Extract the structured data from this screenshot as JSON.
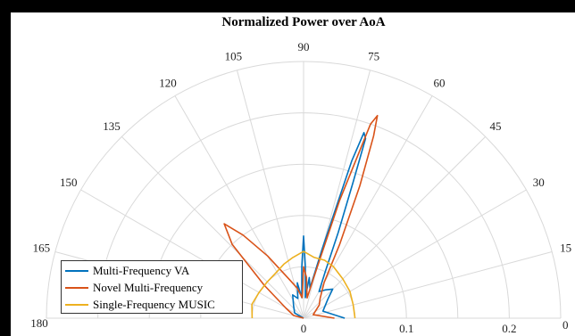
{
  "chart_data": {
    "type": "line",
    "coordinate_system": "polar",
    "title": "Normalized Power over AoA",
    "angle_range_deg": [
      0,
      180
    ],
    "angle_tick_labels": [
      "0",
      "15",
      "30",
      "45",
      "60",
      "75",
      "90",
      "105",
      "120",
      "135",
      "150",
      "165",
      "180"
    ],
    "angle_tick_values": [
      0,
      15,
      30,
      45,
      60,
      75,
      90,
      105,
      120,
      135,
      150,
      165,
      180
    ],
    "radial_range": [
      0,
      0.25
    ],
    "radial_tick_labels": [
      "0",
      "0.1",
      "0.2"
    ],
    "radial_tick_values": [
      0,
      0.1,
      0.2
    ],
    "grid": true,
    "legend_position": "bottom-left",
    "series": [
      {
        "name": "Multi-Frequency VA",
        "color": "#0072BD",
        "points": [
          [
            0,
            0.04
          ],
          [
            20,
            0.02
          ],
          [
            38,
            0.03
          ],
          [
            45,
            0.04
          ],
          [
            52,
            0.035
          ],
          [
            60,
            0.03
          ],
          [
            65,
            0.05
          ],
          [
            68,
            0.09
          ],
          [
            70,
            0.14
          ],
          [
            71,
            0.185
          ],
          [
            72,
            0.19
          ],
          [
            73,
            0.16
          ],
          [
            75,
            0.07
          ],
          [
            78,
            0.03
          ],
          [
            82,
            0.04
          ],
          [
            85,
            0.02
          ],
          [
            88,
            0.05
          ],
          [
            90,
            0.08
          ],
          [
            92,
            0.05
          ],
          [
            95,
            0.02
          ],
          [
            100,
            0.035
          ],
          [
            106,
            0.02
          ],
          [
            115,
            0.025
          ],
          [
            130,
            0.015
          ],
          [
            150,
            0.01
          ],
          [
            180,
            0.0
          ]
        ]
      },
      {
        "name": "Novel Multi-Frequency",
        "color": "#D95319",
        "points": [
          [
            0,
            0.03
          ],
          [
            20,
            0.01
          ],
          [
            40,
            0.02
          ],
          [
            50,
            0.025
          ],
          [
            60,
            0.04
          ],
          [
            64,
            0.08
          ],
          [
            67,
            0.14
          ],
          [
            69,
            0.19
          ],
          [
            70,
            0.21
          ],
          [
            71,
            0.2
          ],
          [
            73,
            0.12
          ],
          [
            76,
            0.04
          ],
          [
            80,
            0.02
          ],
          [
            86,
            0.04
          ],
          [
            90,
            0.05
          ],
          [
            94,
            0.02
          ],
          [
            102,
            0.03
          ],
          [
            110,
            0.04
          ],
          [
            120,
            0.07
          ],
          [
            126,
            0.1
          ],
          [
            130,
            0.12
          ],
          [
            134,
            0.1
          ],
          [
            140,
            0.05
          ],
          [
            150,
            0.02
          ],
          [
            165,
            0.01
          ],
          [
            180,
            0.0
          ]
        ]
      },
      {
        "name": "Single-Frequency MUSIC",
        "color": "#EDB120",
        "points": [
          [
            0,
            0.05
          ],
          [
            15,
            0.05
          ],
          [
            30,
            0.052
          ],
          [
            45,
            0.054
          ],
          [
            60,
            0.058
          ],
          [
            70,
            0.06
          ],
          [
            80,
            0.06
          ],
          [
            90,
            0.065
          ],
          [
            100,
            0.06
          ],
          [
            110,
            0.056
          ],
          [
            120,
            0.052
          ],
          [
            135,
            0.05
          ],
          [
            150,
            0.05
          ],
          [
            165,
            0.052
          ],
          [
            180,
            0.05
          ]
        ]
      }
    ]
  }
}
